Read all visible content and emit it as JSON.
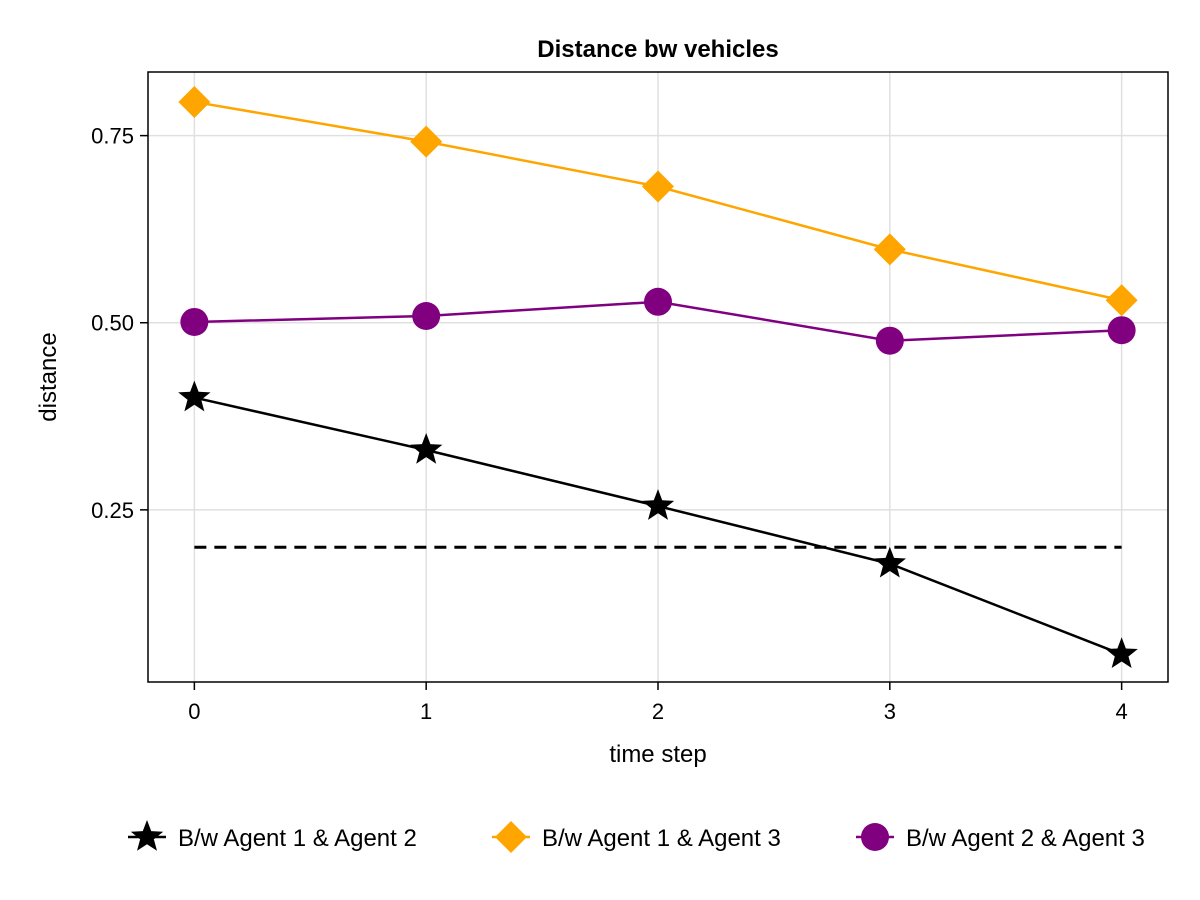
{
  "chart_data": {
    "type": "line",
    "title": "Distance bw vehicles",
    "xlabel": "time step",
    "ylabel": "distance",
    "x": [
      0,
      1,
      2,
      3,
      4
    ],
    "x_ticks": [
      "0",
      "1",
      "2",
      "3",
      "4"
    ],
    "y_ticks": [
      "0.25",
      "0.50",
      "0.75"
    ],
    "y_tick_values": [
      0.25,
      0.5,
      0.75
    ],
    "xlim": [
      -0.2,
      4.2
    ],
    "ylim": [
      0.02,
      0.835
    ],
    "grid": true,
    "legend_position": "bottom",
    "series": [
      {
        "name": "B/w Agent 1 & Agent 2",
        "color": "#000000",
        "marker": "star",
        "values": [
          0.4,
          0.33,
          0.255,
          0.178,
          0.057
        ]
      },
      {
        "name": "B/w Agent 1 & Agent 3",
        "color": "#FFA500",
        "marker": "diamond",
        "values": [
          0.795,
          0.742,
          0.682,
          0.598,
          0.53
        ]
      },
      {
        "name": "B/w Agent 2 & Agent 3",
        "color": "#800080",
        "marker": "circle",
        "values": [
          0.501,
          0.509,
          0.528,
          0.476,
          0.49
        ]
      }
    ],
    "reference_line": {
      "color": "#000000",
      "style": "dashed",
      "y": 0.2,
      "x": [
        0,
        4
      ]
    }
  }
}
